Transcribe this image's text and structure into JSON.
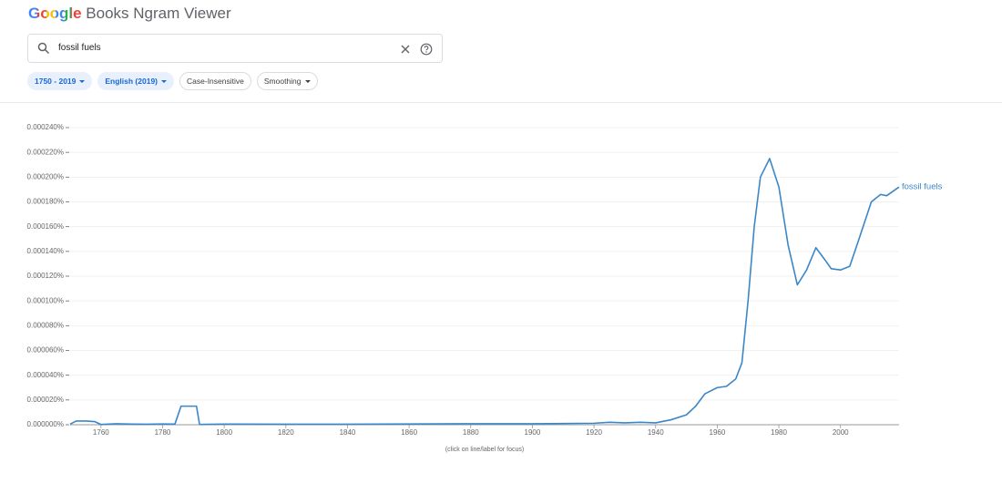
{
  "header": {
    "logo": "Google",
    "title": "Books Ngram Viewer"
  },
  "search": {
    "query": "fossil fuels"
  },
  "filters": [
    "1750 - 2019",
    "English (2019)",
    "Case-Insensitive",
    "Smoothing"
  ],
  "chart_data": {
    "type": "line",
    "note": "(click on line/label for focus)",
    "x": [
      1750,
      1752,
      1755,
      1758,
      1760,
      1765,
      1770,
      1775,
      1780,
      1784,
      1786,
      1788,
      1791,
      1792,
      1800,
      1820,
      1840,
      1860,
      1880,
      1900,
      1920,
      1925,
      1930,
      1935,
      1940,
      1945,
      1950,
      1953,
      1956,
      1960,
      1963,
      1966,
      1968,
      1970,
      1972,
      1974,
      1977,
      1980,
      1983,
      1986,
      1989,
      1992,
      1995,
      1997,
      2000,
      2003,
      2006,
      2010,
      2013,
      2015,
      2019
    ],
    "series": [
      {
        "name": "fossil fuels",
        "color": "#3a87c8",
        "values": [
          5e-07,
          3e-06,
          3e-06,
          2.5e-06,
          2e-07,
          8e-07,
          5e-07,
          4e-07,
          6e-07,
          5e-07,
          1.5e-05,
          1.5e-05,
          1.5e-05,
          2e-07,
          5e-07,
          4e-07,
          4e-07,
          6e-07,
          8e-07,
          8e-07,
          1.2e-06,
          2e-06,
          1.5e-06,
          2e-06,
          1.5e-06,
          4e-06,
          8e-06,
          1.5e-05,
          2.5e-05,
          3e-05,
          3.1e-05,
          3.7e-05,
          5e-05,
          0.0001,
          0.00016,
          0.0002,
          0.000215,
          0.000192,
          0.000145,
          0.000113,
          0.000125,
          0.000143,
          0.000133,
          0.000126,
          0.000125,
          0.000128,
          0.00015,
          0.00018,
          0.000186,
          0.000185,
          0.000192
        ]
      }
    ],
    "xlim": [
      1750,
      2019
    ],
    "xticks": [
      1760,
      1780,
      1800,
      1820,
      1840,
      1860,
      1880,
      1900,
      1920,
      1940,
      1960,
      1980,
      2000
    ],
    "ylim": [
      0,
      0.00024
    ],
    "yticks": [
      {
        "value": 0,
        "label": "0.000000%"
      },
      {
        "value": 2e-05,
        "label": "0.000020%"
      },
      {
        "value": 4e-05,
        "label": "0.000040%"
      },
      {
        "value": 6e-05,
        "label": "0.000060%"
      },
      {
        "value": 8e-05,
        "label": "0.000080%"
      },
      {
        "value": 0.0001,
        "label": "0.000100%"
      },
      {
        "value": 0.00012,
        "label": "0.000120%"
      },
      {
        "value": 0.00014,
        "label": "0.000140%"
      },
      {
        "value": 0.00016,
        "label": "0.000160%"
      },
      {
        "value": 0.00018,
        "label": "0.000180%"
      },
      {
        "value": 0.0002,
        "label": "0.000200%"
      },
      {
        "value": 0.00022,
        "label": "0.000220%"
      },
      {
        "value": 0.00024,
        "label": "0.000240%"
      }
    ],
    "grid": true
  }
}
